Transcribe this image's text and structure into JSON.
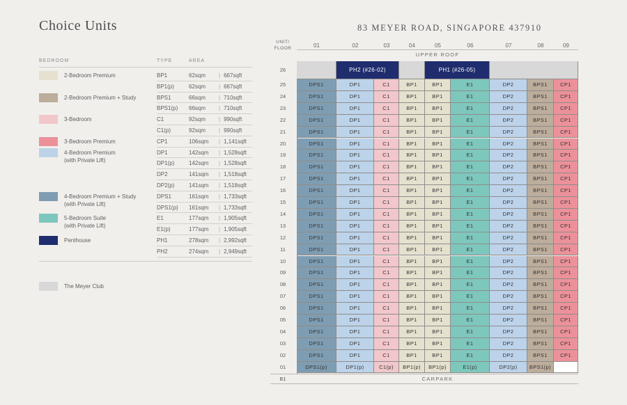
{
  "title": "Choice Units",
  "address": "83 MEYER ROAD, SINGAPORE 437910",
  "legend": {
    "headers": {
      "bedroom": "BEDROOM",
      "type": "TYPE",
      "area": "AREA"
    },
    "groups": [
      {
        "name": "2-Bedroom Premium",
        "color": "#e6e1cf",
        "rows": [
          {
            "type": "BP1",
            "sqm": "62sqm",
            "sqft": "667sqft"
          },
          {
            "type": "BP1(p)",
            "sqm": "62sqm",
            "sqft": "667sqft"
          }
        ]
      },
      {
        "name": "2-Bedroom Premium + Study",
        "color": "#bcad9c",
        "rows": [
          {
            "type": "BPS1",
            "sqm": "66sqm",
            "sqft": "710sqft"
          },
          {
            "type": "BPS1(p)",
            "sqm": "66sqm",
            "sqft": "710sqft"
          }
        ]
      },
      {
        "name": "3-Bedroom",
        "color": "#f2c7cb",
        "rows": [
          {
            "type": "C1",
            "sqm": "92sqm",
            "sqft": "990sqft"
          },
          {
            "type": "C1(p)",
            "sqm": "92sqm",
            "sqft": "990sqft"
          }
        ]
      },
      {
        "name": "3-Bedroom Premium",
        "color": "#ec919a",
        "rows": [
          {
            "type": "CP1",
            "sqm": "106sqm",
            "sqft": "1,141sqft"
          }
        ]
      },
      {
        "name": "4-Bedroom Premium\n(with Private Lift)",
        "color": "#bcd3ea",
        "rows": [
          {
            "type": "DP1",
            "sqm": "142sqm",
            "sqft": "1,528sqft"
          },
          {
            "type": "DP1(p)",
            "sqm": "142sqm",
            "sqft": "1,528sqft"
          },
          {
            "type": "DP2",
            "sqm": "141sqm",
            "sqft": "1,518sqft"
          },
          {
            "type": "DP2(p)",
            "sqm": "141sqm",
            "sqft": "1,518sqft"
          }
        ]
      },
      {
        "name": "4-Bedroom Premium + Study\n(with Private Lift)",
        "color": "#7f9db2",
        "rows": [
          {
            "type": "DPS1",
            "sqm": "161sqm",
            "sqft": "1,733sqft"
          },
          {
            "type": "DPS1(p)",
            "sqm": "161sqm",
            "sqft": "1,733sqft"
          }
        ]
      },
      {
        "name": "5-Bedroom Suite\n(with Private Lift)",
        "color": "#7ec7bd",
        "rows": [
          {
            "type": "E1",
            "sqm": "177sqm",
            "sqft": "1,905sqft"
          },
          {
            "type": "E1(p)",
            "sqm": "177sqm",
            "sqft": "1,905sqft"
          }
        ]
      },
      {
        "name": "Penthouse",
        "color": "#1f2d6e",
        "rows": [
          {
            "type": "PH1",
            "sqm": "278sqm",
            "sqft": "2,992sqft"
          },
          {
            "type": "PH2",
            "sqm": "274sqm",
            "sqft": "2,949sqft"
          }
        ]
      }
    ],
    "club": {
      "name": "The Meyer Club",
      "color": "#d8d8d8"
    }
  },
  "stack": {
    "unit_floor_label": "UNIT/\nFLOOR",
    "columns": [
      "01",
      "02",
      "03",
      "04",
      "05",
      "06",
      "07",
      "08",
      "09"
    ],
    "column_types": [
      "DPS1",
      "DP1",
      "C1",
      "BP1",
      "BP1",
      "E1",
      "DP2",
      "BPS1",
      "CP1"
    ],
    "column_colors": [
      "#7f9db2",
      "#bcd3ea",
      "#f2c7cb",
      "#e6e1cf",
      "#e6e1cf",
      "#7ec7bd",
      "#bcd3ea",
      "#bcad9c",
      "#ec919a"
    ],
    "upper_roof": "UPPER ROOF",
    "floor_26": {
      "label": "26",
      "ph2": "PH2 (#26-02)",
      "ph1": "PH1 (#26-05)"
    },
    "typical_floors": [
      "25",
      "24",
      "23",
      "22",
      "21",
      "20",
      "19",
      "18",
      "17",
      "16",
      "15",
      "14",
      "13",
      "12",
      "11",
      "10",
      "09",
      "08",
      "07",
      "06",
      "05",
      "04",
      "03",
      "02"
    ],
    "floor_01": {
      "label": "01",
      "units": [
        "DPS1(p)",
        "DP1(p)",
        "C1(p)",
        "BP1(p)",
        "BP1(p)",
        "E1(p)",
        "DP2(p)",
        "BPS1(p)",
        ""
      ]
    },
    "basement": {
      "label": "B1",
      "name": "CARPARK"
    }
  }
}
